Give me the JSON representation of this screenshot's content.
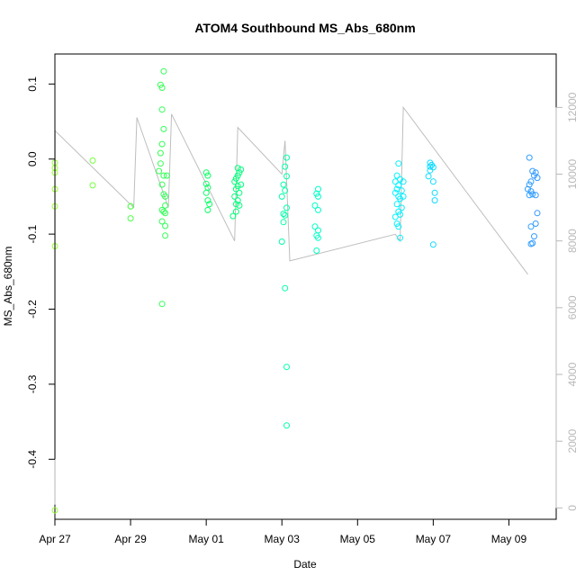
{
  "chart_data": {
    "type": "scatter",
    "title": "ATOM4 Southbound MS_Abs_680nm",
    "xlabel": "Date",
    "ylabel": "MS_Abs_680nm",
    "xlim": [
      "2021-04-27T00:00",
      "2021-05-10T06:00"
    ],
    "ylim": [
      -0.48,
      0.14
    ],
    "y2lim": [
      -340,
      13600
    ],
    "x_ticks": [
      "Apr 27",
      "Apr 29",
      "May 01",
      "May 03",
      "May 05",
      "May 07",
      "May 09"
    ],
    "x_tick_dates": [
      "2021-04-27",
      "2021-04-29",
      "2021-05-01",
      "2021-05-03",
      "2021-05-05",
      "2021-05-07",
      "2021-05-09"
    ],
    "y_ticks": [
      -0.4,
      -0.3,
      -0.2,
      -0.1,
      0.0,
      0.1
    ],
    "y_tick_labels": [
      "-0.4",
      "-0.3",
      "-0.2",
      "-0.1",
      "0.0",
      "0.1"
    ],
    "y2_ticks": [
      0,
      2000,
      4000,
      6000,
      8000,
      10000,
      12000
    ],
    "y2_tick_labels": [
      "0",
      "2000",
      "4000",
      "6000",
      "8000",
      "10000",
      "12000"
    ],
    "grid": false,
    "legend": "none",
    "point_style": "open circle",
    "line_color": "#bebebe",
    "color_gradient": [
      "#99ff33",
      "#00ff66",
      "#00ffff",
      "#3399ff"
    ],
    "points": [
      [
        "2021-04-27T00:00",
        -0.005
      ],
      [
        "2021-04-27T00:00",
        -0.012
      ],
      [
        "2021-04-27T00:00",
        -0.018
      ],
      [
        "2021-04-27T00:05",
        -0.04
      ],
      [
        "2021-04-27T00:00",
        -0.063
      ],
      [
        "2021-04-27T00:05",
        -0.116
      ],
      [
        "2021-04-27T00:00",
        -0.468
      ],
      [
        "2021-04-28T00:00",
        -0.002
      ],
      [
        "2021-04-28T00:00",
        -0.035
      ],
      [
        "2021-04-29T00:00",
        -0.063
      ],
      [
        "2021-04-29T00:05",
        -0.063
      ],
      [
        "2021-04-29T00:00",
        -0.079
      ],
      [
        "2021-04-29T19:00",
        0.099
      ],
      [
        "2021-04-29T21:00",
        0.117
      ],
      [
        "2021-04-29T20:00",
        0.095
      ],
      [
        "2021-04-29T20:00",
        0.066
      ],
      [
        "2021-04-29T21:00",
        0.04
      ],
      [
        "2021-04-29T20:00",
        0.02
      ],
      [
        "2021-04-29T19:00",
        0.008
      ],
      [
        "2021-04-29T19:00",
        -0.006
      ],
      [
        "2021-04-29T18:00",
        -0.016
      ],
      [
        "2021-04-29T21:00",
        -0.022
      ],
      [
        "2021-04-29T23:00",
        -0.022
      ],
      [
        "2021-04-29T20:00",
        -0.034
      ],
      [
        "2021-04-29T21:00",
        -0.047
      ],
      [
        "2021-04-29T22:00",
        -0.05
      ],
      [
        "2021-04-29T22:00",
        -0.062
      ],
      [
        "2021-04-29T20:00",
        -0.068
      ],
      [
        "2021-04-29T21:00",
        -0.07
      ],
      [
        "2021-04-29T22:00",
        -0.072
      ],
      [
        "2021-04-29T20:00",
        -0.083
      ],
      [
        "2021-04-29T22:00",
        -0.089
      ],
      [
        "2021-04-29T22:00",
        -0.102
      ],
      [
        "2021-04-29T20:00",
        -0.193
      ],
      [
        "2021-05-01T00:00",
        -0.018
      ],
      [
        "2021-05-01T01:00",
        -0.022
      ],
      [
        "2021-05-01T00:00",
        -0.033
      ],
      [
        "2021-05-01T01:00",
        -0.038
      ],
      [
        "2021-05-01T00:00",
        -0.045
      ],
      [
        "2021-05-01T01:00",
        -0.055
      ],
      [
        "2021-05-01T02:00",
        -0.06
      ],
      [
        "2021-05-01T01:00",
        -0.068
      ],
      [
        "2021-05-01T20:00",
        -0.012
      ],
      [
        "2021-05-01T22:00",
        -0.014
      ],
      [
        "2021-05-01T21:00",
        -0.018
      ],
      [
        "2021-05-01T20:00",
        -0.022
      ],
      [
        "2021-05-01T19:00",
        -0.026
      ],
      [
        "2021-05-01T18:00",
        -0.03
      ],
      [
        "2021-05-01T22:00",
        -0.034
      ],
      [
        "2021-05-01T20:00",
        -0.036
      ],
      [
        "2021-05-01T19:00",
        -0.04
      ],
      [
        "2021-05-01T21:00",
        -0.045
      ],
      [
        "2021-05-01T18:00",
        -0.05
      ],
      [
        "2021-05-01T20:00",
        -0.055
      ],
      [
        "2021-05-01T19:00",
        -0.06
      ],
      [
        "2021-05-01T21:00",
        -0.062
      ],
      [
        "2021-05-01T19:00",
        -0.07
      ],
      [
        "2021-05-01T17:00",
        -0.076
      ],
      [
        "2021-05-03T03:00",
        0.002
      ],
      [
        "2021-05-03T02:00",
        -0.01
      ],
      [
        "2021-05-03T03:00",
        -0.023
      ],
      [
        "2021-05-03T01:00",
        -0.034
      ],
      [
        "2021-05-03T02:00",
        -0.042
      ],
      [
        "2021-05-03T00:00",
        -0.05
      ],
      [
        "2021-05-03T03:00",
        -0.065
      ],
      [
        "2021-05-03T01:00",
        -0.073
      ],
      [
        "2021-05-03T02:00",
        -0.075
      ],
      [
        "2021-05-03T01:00",
        -0.084
      ],
      [
        "2021-05-03T00:00",
        -0.11
      ],
      [
        "2021-05-03T02:00",
        -0.172
      ],
      [
        "2021-05-03T03:00",
        -0.277
      ],
      [
        "2021-05-03T03:00",
        -0.355
      ],
      [
        "2021-05-03T23:00",
        -0.04
      ],
      [
        "2021-05-03T22:00",
        -0.046
      ],
      [
        "2021-05-03T23:00",
        -0.05
      ],
      [
        "2021-05-03T21:00",
        -0.062
      ],
      [
        "2021-05-03T23:00",
        -0.068
      ],
      [
        "2021-05-03T21:00",
        -0.09
      ],
      [
        "2021-05-03T23:00",
        -0.095
      ],
      [
        "2021-05-03T22:00",
        -0.102
      ],
      [
        "2021-05-03T23:00",
        -0.105
      ],
      [
        "2021-05-03T22:00",
        -0.122
      ],
      [
        "2021-05-06T02:00",
        -0.006
      ],
      [
        "2021-05-06T01:00",
        -0.022
      ],
      [
        "2021-05-06T00:00",
        -0.03
      ],
      [
        "2021-05-06T03:00",
        -0.027
      ],
      [
        "2021-05-06T05:00",
        -0.03
      ],
      [
        "2021-05-06T02:00",
        -0.035
      ],
      [
        "2021-05-06T01:00",
        -0.04
      ],
      [
        "2021-05-06T04:00",
        -0.042
      ],
      [
        "2021-05-06T00:00",
        -0.045
      ],
      [
        "2021-05-06T02:00",
        -0.05
      ],
      [
        "2021-05-06T05:00",
        -0.05
      ],
      [
        "2021-05-06T03:00",
        -0.053
      ],
      [
        "2021-05-06T01:00",
        -0.06
      ],
      [
        "2021-05-06T04:00",
        -0.065
      ],
      [
        "2021-05-06T02:00",
        -0.07
      ],
      [
        "2021-05-06T00:00",
        -0.077
      ],
      [
        "2021-05-06T03:00",
        -0.074
      ],
      [
        "2021-05-06T01:00",
        -0.086
      ],
      [
        "2021-05-06T02:00",
        -0.09
      ],
      [
        "2021-05-06T03:00",
        -0.105
      ],
      [
        "2021-05-06T22:00",
        -0.005
      ],
      [
        "2021-05-06T23:00",
        -0.008
      ],
      [
        "2021-05-06T22:00",
        -0.01
      ],
      [
        "2021-05-07T00:00",
        -0.011
      ],
      [
        "2021-05-06T22:00",
        -0.015
      ],
      [
        "2021-05-06T21:00",
        -0.023
      ],
      [
        "2021-05-07T00:00",
        -0.03
      ],
      [
        "2021-05-07T01:00",
        -0.045
      ],
      [
        "2021-05-07T01:00",
        -0.055
      ],
      [
        "2021-05-07T00:00",
        -0.114
      ],
      [
        "2021-05-09T13:00",
        0.002
      ],
      [
        "2021-05-09T15:00",
        -0.016
      ],
      [
        "2021-05-09T17:00",
        -0.018
      ],
      [
        "2021-05-09T16:00",
        -0.022
      ],
      [
        "2021-05-09T18:00",
        -0.025
      ],
      [
        "2021-05-09T14:00",
        -0.03
      ],
      [
        "2021-05-09T13:00",
        -0.034
      ],
      [
        "2021-05-09T12:00",
        -0.04
      ],
      [
        "2021-05-09T14:00",
        -0.043
      ],
      [
        "2021-05-09T15:00",
        -0.047
      ],
      [
        "2021-05-09T13:00",
        -0.048
      ],
      [
        "2021-05-09T17:00",
        -0.048
      ],
      [
        "2021-05-09T18:00",
        -0.072
      ],
      [
        "2021-05-09T17:00",
        -0.086
      ],
      [
        "2021-05-09T14:00",
        -0.09
      ],
      [
        "2021-05-09T16:00",
        -0.103
      ],
      [
        "2021-05-09T15:00",
        -0.112
      ],
      [
        "2021-05-09T14:00",
        -0.113
      ]
    ],
    "secondary_line": {
      "name": "",
      "axis": "right",
      "points": [
        [
          "2021-04-27T00:00",
          100
        ],
        [
          "2021-04-27T00:02",
          5500
        ],
        [
          "2021-04-27T00:04",
          200
        ],
        [
          "2021-04-27T00:06",
          11300
        ],
        [
          "2021-04-29T02:00",
          9000
        ],
        [
          "2021-04-29T04:00",
          11700
        ],
        [
          "2021-04-30T00:00",
          9000
        ],
        [
          "2021-04-30T02:00",
          11800
        ],
        [
          "2021-05-01T18:00",
          8000
        ],
        [
          "2021-05-01T20:00",
          11400
        ],
        [
          "2021-05-03T00:00",
          10000
        ],
        [
          "2021-05-03T02:00",
          11000
        ],
        [
          "2021-05-03T05:00",
          7400
        ],
        [
          "2021-05-06T00:00",
          8200
        ],
        [
          "2021-05-06T03:00",
          8000
        ],
        [
          "2021-05-06T05:00",
          12000
        ],
        [
          "2021-05-09T12:00",
          7000
        ]
      ]
    }
  }
}
